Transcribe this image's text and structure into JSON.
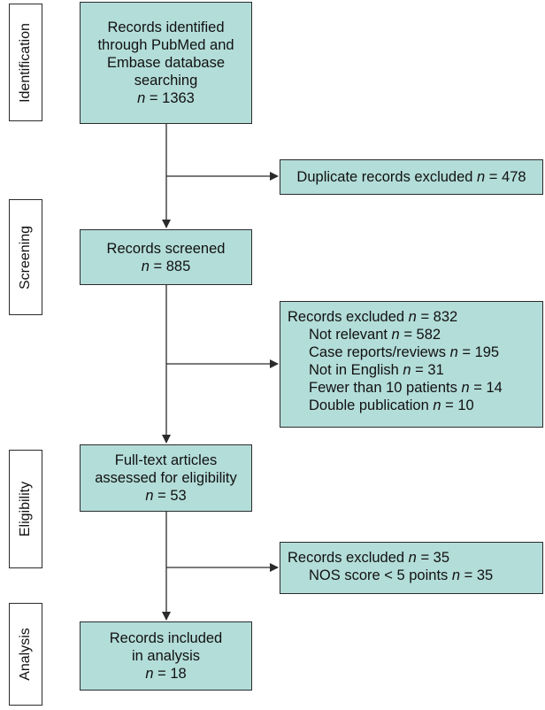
{
  "colors": {
    "box_fill": "#b3ddd9",
    "stroke": "#2b2b2b",
    "text": "#111111"
  },
  "stages": {
    "identification": "Identification",
    "screening": "Screening",
    "eligibility": "Eligibility",
    "analysis": "Analysis"
  },
  "identified": {
    "lines": [
      "Records identified",
      "through PubMed and",
      "Embase database",
      "searching"
    ],
    "n_label": "n",
    "n_eq": " = ",
    "n_value": "1363"
  },
  "duplicates": {
    "text": "Duplicate records excluded ",
    "n_label": "n",
    "n_eq": " = ",
    "n_value": "478"
  },
  "screened": {
    "lines": [
      "Records screened"
    ],
    "n_label": "n",
    "n_eq": " = ",
    "n_value": "885"
  },
  "excluded_screening": {
    "header": "Records excluded ",
    "n_label": "n",
    "n_eq": " = ",
    "n_value": "832",
    "items": [
      {
        "text": "Not relevant ",
        "n_label": "n",
        "n_eq": " = ",
        "n_value": "582"
      },
      {
        "text": "Case reports/reviews ",
        "n_label": "n",
        "n_eq": " = ",
        "n_value": "195"
      },
      {
        "text": "Not in English ",
        "n_label": "n",
        "n_eq": " = ",
        "n_value": "31"
      },
      {
        "text": "Fewer than 10 patients ",
        "n_label": "n",
        "n_eq": " = ",
        "n_value": "14"
      },
      {
        "text": "Double publication ",
        "n_label": "n",
        "n_eq": " = ",
        "n_value": "10"
      }
    ]
  },
  "fulltext": {
    "lines": [
      "Full-text articles",
      "assessed for eligibility"
    ],
    "n_label": "n",
    "n_eq": " = ",
    "n_value": "53"
  },
  "excluded_eligibility": {
    "header": "Records excluded ",
    "n_label": "n",
    "n_eq": " = ",
    "n_value": "35",
    "items": [
      {
        "text": "NOS score < 5 points ",
        "n_label": "n",
        "n_eq": " = ",
        "n_value": "35"
      }
    ]
  },
  "included": {
    "lines": [
      "Records included",
      "in analysis"
    ],
    "n_label": "n",
    "n_eq": " = ",
    "n_value": "18"
  }
}
